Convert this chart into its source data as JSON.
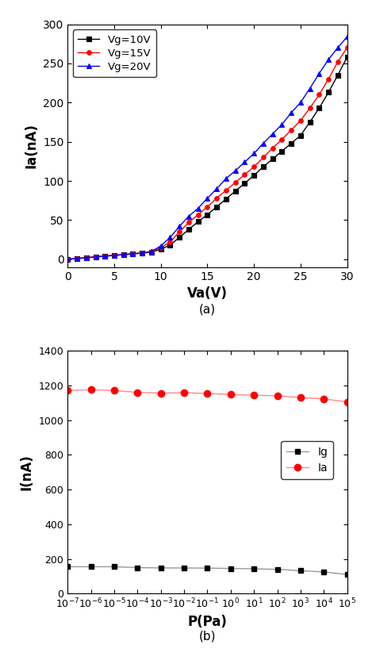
{
  "plot_a": {
    "xlabel": "Va(V)",
    "ylabel": "Ia(nA)",
    "xlim": [
      0,
      30
    ],
    "ylim": [
      -10,
      300
    ],
    "xticks": [
      0,
      5,
      10,
      15,
      20,
      25,
      30
    ],
    "yticks": [
      0,
      50,
      100,
      150,
      200,
      250,
      300
    ],
    "caption": "(a)",
    "series": [
      {
        "label": "Vg=10V",
        "color": "#000000",
        "marker": "s",
        "x": [
          0,
          1,
          2,
          3,
          4,
          5,
          6,
          7,
          8,
          9,
          10,
          11,
          12,
          13,
          14,
          15,
          16,
          17,
          18,
          19,
          20,
          21,
          22,
          23,
          24,
          25,
          26,
          27,
          28,
          29,
          30
        ],
        "y": [
          0,
          1,
          2,
          3,
          4,
          5,
          6,
          7,
          8,
          9,
          13,
          18,
          28,
          38,
          48,
          57,
          67,
          77,
          87,
          97,
          107,
          118,
          128,
          138,
          148,
          158,
          175,
          193,
          213,
          235,
          258
        ]
      },
      {
        "label": "Vg=15V",
        "color": "#ff0000",
        "marker": "o",
        "x": [
          0,
          1,
          2,
          3,
          4,
          5,
          6,
          7,
          8,
          9,
          10,
          11,
          12,
          13,
          14,
          15,
          16,
          17,
          18,
          19,
          20,
          21,
          22,
          23,
          24,
          25,
          26,
          27,
          28,
          29,
          30
        ],
        "y": [
          0,
          1,
          2,
          3,
          4,
          5,
          6,
          7,
          8,
          10,
          15,
          22,
          35,
          47,
          57,
          67,
          78,
          88,
          98,
          108,
          118,
          130,
          142,
          153,
          165,
          177,
          193,
          210,
          230,
          252,
          270
        ]
      },
      {
        "label": "Vg=20V",
        "color": "#0000ff",
        "marker": "^",
        "x": [
          0,
          1,
          2,
          3,
          4,
          5,
          6,
          7,
          8,
          9,
          10,
          11,
          12,
          13,
          14,
          15,
          16,
          17,
          18,
          19,
          20,
          21,
          22,
          23,
          24,
          25,
          26,
          27,
          28,
          29,
          30
        ],
        "y": [
          0,
          1,
          2,
          3,
          4,
          5,
          6,
          7,
          8,
          10,
          17,
          28,
          42,
          55,
          65,
          78,
          90,
          103,
          113,
          124,
          135,
          148,
          160,
          172,
          187,
          200,
          218,
          237,
          255,
          270,
          284
        ]
      }
    ]
  },
  "plot_b": {
    "xlabel": "P(Pa)",
    "ylabel": "I(nA)",
    "ylim": [
      0,
      1400
    ],
    "yticks": [
      0,
      200,
      400,
      600,
      800,
      1000,
      1200,
      1400
    ],
    "caption": "(b)",
    "x_powers": [
      -7,
      -6,
      -5,
      -4,
      -3,
      -2,
      -1,
      0,
      1,
      2,
      3,
      4,
      5
    ],
    "Ig_y": [
      155,
      155,
      155,
      150,
      148,
      148,
      147,
      145,
      143,
      140,
      132,
      125,
      110
    ],
    "Ia_y": [
      1170,
      1175,
      1170,
      1160,
      1155,
      1158,
      1153,
      1148,
      1143,
      1140,
      1130,
      1122,
      1105
    ],
    "Ig_marker_color": "#000000",
    "Ig_line_color": "#999999",
    "Ia_marker_color": "#ff0000",
    "Ia_line_color": "#ff8888"
  }
}
